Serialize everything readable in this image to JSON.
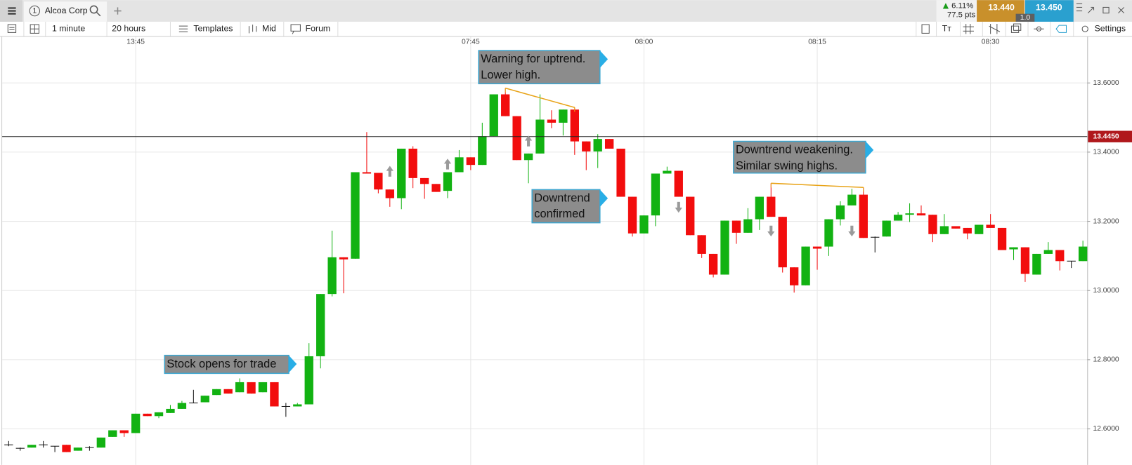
{
  "toolbar": {
    "tab_number": "1",
    "tab": "Alcoa Corp",
    "change": "6.11%",
    "change_pts": "77.5 pts",
    "sell": "13.440",
    "buy": "13.450",
    "spread": "1.0",
    "interval": "1 minute",
    "range": "20 hours",
    "templates": "Templates",
    "price_type": "Mid",
    "forum": "Forum",
    "settings": "Settings"
  },
  "chart_data": {
    "type": "candlestick",
    "up_color": "#12b212",
    "down_color": "#f20d0d",
    "grid": true,
    "xlim": [
      -0.5625,
      93.375
    ],
    "xticks": [
      {
        "value": 11,
        "label": "13:45"
      },
      {
        "value": 40,
        "label": "07:45"
      },
      {
        "value": 55,
        "label": "08:00"
      },
      {
        "value": 70,
        "label": "08:15"
      },
      {
        "value": 85,
        "label": "08:30"
      }
    ],
    "ylim": [
      12.496,
      13.704
    ],
    "yticks": [
      {
        "value": 12.6,
        "label": "12.6000"
      },
      {
        "value": 12.8,
        "label": "12.8000"
      },
      {
        "value": 13.0,
        "label": "13.0000"
      },
      {
        "value": 13.2,
        "label": "13.2000"
      },
      {
        "value": 13.4,
        "label": "13.4000"
      },
      {
        "value": 13.6,
        "label": "13.6000"
      }
    ],
    "current_price": {
      "value": 13.445,
      "label": "13.4450"
    },
    "annotations": [
      [
        "Stock opens for trade"
      ],
      [
        "Warning for uptrend.",
        "Lower high."
      ],
      [
        "Downtrend",
        "confirmed"
      ],
      [
        "Downtrend weakening.",
        "Similar swing highs."
      ]
    ],
    "ohlc": [
      [
        12.554,
        12.565,
        12.55,
        12.554
      ],
      [
        12.544,
        12.546,
        12.537,
        12.544
      ],
      [
        12.546,
        12.554,
        12.546,
        12.554
      ],
      [
        12.554,
        12.565,
        12.546,
        12.554
      ],
      [
        12.55,
        12.55,
        12.533,
        12.55
      ],
      [
        12.554,
        12.554,
        12.533,
        12.533
      ],
      [
        12.537,
        12.546,
        12.537,
        12.546
      ],
      [
        12.546,
        12.55,
        12.537,
        12.546
      ],
      [
        12.546,
        12.575,
        12.546,
        12.575
      ],
      [
        12.577,
        12.596,
        12.577,
        12.596
      ],
      [
        12.596,
        12.596,
        12.577,
        12.588
      ],
      [
        12.588,
        12.644,
        12.588,
        12.644
      ],
      [
        12.644,
        12.644,
        12.637,
        12.637
      ],
      [
        12.637,
        12.648,
        12.631,
        12.648
      ],
      [
        12.646,
        12.669,
        12.646,
        12.658
      ],
      [
        12.658,
        12.681,
        12.658,
        12.675
      ],
      [
        12.675,
        12.713,
        12.675,
        12.675
      ],
      [
        12.677,
        12.696,
        12.677,
        12.696
      ],
      [
        12.698,
        12.715,
        12.698,
        12.715
      ],
      [
        12.715,
        12.715,
        12.702,
        12.702
      ],
      [
        12.706,
        12.746,
        12.706,
        12.735
      ],
      [
        12.735,
        12.735,
        12.702,
        12.702
      ],
      [
        12.706,
        12.735,
        12.706,
        12.735
      ],
      [
        12.735,
        12.735,
        12.665,
        12.665
      ],
      [
        12.665,
        12.675,
        12.635,
        12.665
      ],
      [
        12.665,
        12.675,
        12.665,
        12.671
      ],
      [
        12.671,
        12.848,
        12.671,
        12.81
      ],
      [
        12.81,
        12.99,
        12.775,
        12.99
      ],
      [
        12.99,
        13.173,
        12.983,
        13.096
      ],
      [
        13.096,
        13.096,
        12.992,
        13.09
      ],
      [
        13.092,
        13.342,
        13.092,
        13.342
      ],
      [
        13.342,
        13.458,
        13.338,
        13.338
      ],
      [
        13.34,
        13.34,
        13.281,
        13.292
      ],
      [
        13.292,
        13.292,
        13.242,
        13.267
      ],
      [
        13.267,
        13.41,
        13.235,
        13.41
      ],
      [
        13.41,
        13.417,
        13.296,
        13.325
      ],
      [
        13.325,
        13.325,
        13.265,
        13.308
      ],
      [
        13.308,
        13.308,
        13.285,
        13.285
      ],
      [
        13.288,
        13.342,
        13.267,
        13.342
      ],
      [
        13.342,
        13.406,
        13.342,
        13.385
      ],
      [
        13.385,
        13.385,
        13.348,
        13.363
      ],
      [
        13.363,
        13.485,
        13.363,
        13.446
      ],
      [
        13.446,
        13.567,
        13.446,
        13.567
      ],
      [
        13.567,
        13.585,
        13.504,
        13.504
      ],
      [
        13.504,
        13.504,
        13.377,
        13.377
      ],
      [
        13.377,
        13.396,
        13.31,
        13.396
      ],
      [
        13.396,
        13.567,
        13.396,
        13.494
      ],
      [
        13.494,
        13.521,
        13.469,
        13.485
      ],
      [
        13.485,
        13.523,
        13.448,
        13.523
      ],
      [
        13.523,
        13.529,
        13.392,
        13.431
      ],
      [
        13.431,
        13.431,
        13.348,
        13.402
      ],
      [
        13.402,
        13.452,
        13.354,
        13.438
      ],
      [
        13.438,
        13.438,
        13.41,
        13.41
      ],
      [
        13.41,
        13.41,
        13.271,
        13.271
      ],
      [
        13.271,
        13.271,
        13.156,
        13.165
      ],
      [
        13.165,
        13.217,
        13.165,
        13.217
      ],
      [
        13.217,
        13.338,
        13.186,
        13.338
      ],
      [
        13.338,
        13.358,
        13.338,
        13.346
      ],
      [
        13.346,
        13.346,
        13.271,
        13.271
      ],
      [
        13.271,
        13.271,
        13.16,
        13.16
      ],
      [
        13.16,
        13.16,
        13.094,
        13.106
      ],
      [
        13.106,
        13.106,
        13.038,
        13.046
      ],
      [
        13.046,
        13.202,
        13.046,
        13.202
      ],
      [
        13.202,
        13.202,
        13.135,
        13.167
      ],
      [
        13.167,
        13.238,
        13.167,
        13.206
      ],
      [
        13.206,
        13.271,
        13.175,
        13.271
      ],
      [
        13.271,
        13.31,
        13.213,
        13.213
      ],
      [
        13.213,
        13.213,
        13.052,
        13.067
      ],
      [
        13.067,
        13.067,
        12.994,
        13.015
      ],
      [
        13.015,
        13.127,
        13.015,
        13.127
      ],
      [
        13.127,
        13.127,
        13.06,
        13.121
      ],
      [
        13.127,
        13.206,
        13.1,
        13.206
      ],
      [
        13.206,
        13.258,
        13.188,
        13.246
      ],
      [
        13.246,
        13.294,
        13.246,
        13.277
      ],
      [
        13.277,
        13.298,
        13.152,
        13.152
      ],
      [
        13.154,
        13.156,
        13.11,
        13.154
      ],
      [
        13.156,
        13.202,
        13.156,
        13.202
      ],
      [
        13.202,
        13.227,
        13.202,
        13.219
      ],
      [
        13.219,
        13.252,
        13.198,
        13.223
      ],
      [
        13.223,
        13.246,
        13.217,
        13.217
      ],
      [
        13.219,
        13.219,
        13.14,
        13.163
      ],
      [
        13.163,
        13.221,
        13.163,
        13.186
      ],
      [
        13.186,
        13.186,
        13.179,
        13.179
      ],
      [
        13.181,
        13.181,
        13.148,
        13.165
      ],
      [
        13.163,
        13.19,
        13.163,
        13.19
      ],
      [
        13.19,
        13.221,
        13.181,
        13.181
      ],
      [
        13.181,
        13.181,
        13.117,
        13.117
      ],
      [
        13.119,
        13.125,
        13.088,
        13.125
      ],
      [
        13.125,
        13.125,
        13.025,
        13.048
      ],
      [
        13.046,
        13.106,
        13.046,
        13.106
      ],
      [
        13.106,
        13.14,
        13.106,
        13.117
      ],
      [
        13.117,
        13.117,
        13.058,
        13.085
      ],
      [
        13.085,
        13.085,
        13.065,
        13.085
      ],
      [
        13.085,
        13.144,
        13.085,
        13.127
      ]
    ]
  }
}
